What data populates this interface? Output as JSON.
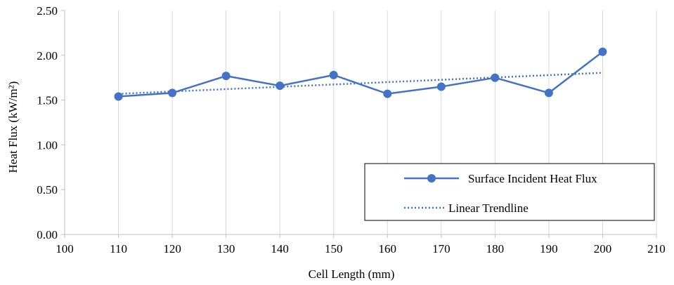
{
  "chart_data": {
    "type": "line",
    "xlabel": "Cell Length (mm)",
    "ylabel": "Heat Flux (kW/m²)",
    "xlim": [
      100,
      210
    ],
    "ylim": [
      0,
      2.5
    ],
    "x_ticks": [
      100,
      110,
      120,
      130,
      140,
      150,
      160,
      170,
      180,
      190,
      200,
      210
    ],
    "y_ticks": [
      0,
      0.5,
      1.0,
      1.5,
      2.0,
      2.5
    ],
    "y_tick_labels": [
      "0.00",
      "0.50",
      "1.00",
      "1.50",
      "2.00",
      "2.50"
    ],
    "grid": "vertical",
    "legend_position": "bottom-right",
    "series": [
      {
        "name": "Surface Incident Heat Flux",
        "style": "solid-markers",
        "color": "#4472c4",
        "x": [
          110,
          120,
          130,
          140,
          150,
          160,
          170,
          180,
          190,
          200
        ],
        "y": [
          1.54,
          1.58,
          1.77,
          1.66,
          1.78,
          1.57,
          1.65,
          1.75,
          1.58,
          2.04
        ]
      },
      {
        "name": "Linear Trendline",
        "style": "dotted",
        "color": "#4472c4",
        "x": [
          110,
          200
        ],
        "y": [
          1.57,
          1.805
        ]
      }
    ]
  }
}
